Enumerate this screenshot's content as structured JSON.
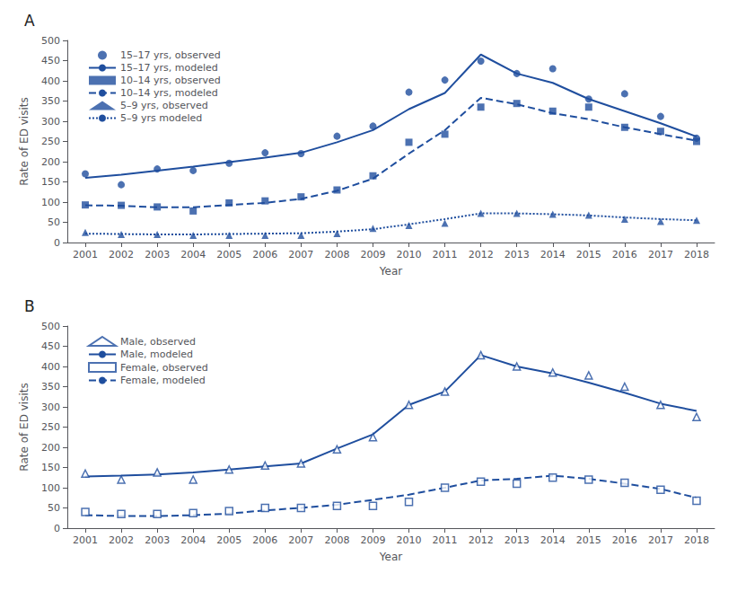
{
  "chart_data": [
    {
      "type": "line",
      "title": "A",
      "xlabel": "Year",
      "ylabel": "Rate of ED visits",
      "x": [
        2001,
        2002,
        2003,
        2004,
        2005,
        2006,
        2007,
        2008,
        2009,
        2010,
        2011,
        2012,
        2013,
        2014,
        2015,
        2016,
        2017,
        2018
      ],
      "xlim": [
        2000.5,
        2018.5
      ],
      "xticks": [
        2001,
        2002,
        2003,
        2004,
        2005,
        2006,
        2007,
        2008,
        2009,
        2010,
        2011,
        2012,
        2013,
        2014,
        2015,
        2016,
        2017,
        2018
      ],
      "ylim": [
        0,
        500
      ],
      "yticks": [
        0,
        50,
        100,
        150,
        200,
        250,
        300,
        350,
        400,
        450,
        500
      ],
      "grid": false,
      "legend": "upper left",
      "color": "#1f4e9e",
      "series": [
        {
          "name": "15–17 yrs, observed",
          "type": "scatter",
          "marker": "circle",
          "values": [
            170,
            143,
            182,
            178,
            196,
            222,
            220,
            263,
            288,
            372,
            402,
            449,
            418,
            430,
            355,
            368,
            312,
            258
          ]
        },
        {
          "name": "15–17 yrs, modeled",
          "type": "line",
          "line_style": "solid",
          "values": [
            160,
            168,
            178,
            188,
            199,
            210,
            222,
            248,
            278,
            330,
            370,
            465,
            418,
            395,
            355,
            325,
            295,
            262
          ]
        },
        {
          "name": "10–14 yrs, observed",
          "type": "scatter",
          "marker": "square",
          "values": [
            93,
            92,
            88,
            78,
            98,
            103,
            113,
            130,
            165,
            248,
            268,
            335,
            344,
            325,
            335,
            285,
            275,
            250
          ]
        },
        {
          "name": "10–14 yrs, modeled",
          "type": "line",
          "line_style": "dashed",
          "values": [
            92,
            91,
            87,
            87,
            93,
            98,
            108,
            128,
            158,
            220,
            278,
            358,
            342,
            320,
            305,
            285,
            268,
            252
          ]
        },
        {
          "name": "5–9 yrs, observed",
          "type": "scatter",
          "marker": "triangle",
          "values": [
            25,
            20,
            20,
            18,
            18,
            18,
            18,
            22,
            35,
            42,
            48,
            72,
            72,
            70,
            68,
            58,
            52,
            55
          ]
        },
        {
          "name": "5–9 yrs modeled",
          "type": "line",
          "line_style": "dotted",
          "values": [
            22,
            21,
            20,
            20,
            21,
            22,
            23,
            27,
            33,
            45,
            58,
            72,
            72,
            70,
            67,
            62,
            58,
            55
          ]
        }
      ]
    },
    {
      "type": "line",
      "title": "B",
      "xlabel": "Year",
      "ylabel": "Rate of ED visits",
      "x": [
        2001,
        2002,
        2003,
        2004,
        2005,
        2006,
        2007,
        2008,
        2009,
        2010,
        2011,
        2012,
        2013,
        2014,
        2015,
        2016,
        2017,
        2018
      ],
      "xlim": [
        2000.5,
        2018.5
      ],
      "xticks": [
        2001,
        2002,
        2003,
        2004,
        2005,
        2006,
        2007,
        2008,
        2009,
        2010,
        2011,
        2012,
        2013,
        2014,
        2015,
        2016,
        2017,
        2018
      ],
      "ylim": [
        0,
        500
      ],
      "yticks": [
        0,
        50,
        100,
        150,
        200,
        250,
        300,
        350,
        400,
        450,
        500
      ],
      "grid": false,
      "legend": "upper left",
      "color": "#1f4e9e",
      "series": [
        {
          "name": "Male, observed",
          "type": "scatter",
          "marker": "open-triangle",
          "values": [
            135,
            120,
            138,
            120,
            145,
            155,
            160,
            195,
            225,
            305,
            338,
            428,
            400,
            385,
            378,
            350,
            305,
            275
          ]
        },
        {
          "name": "Male, modeled",
          "type": "line",
          "line_style": "solid",
          "values": [
            128,
            130,
            133,
            138,
            145,
            153,
            160,
            197,
            232,
            305,
            338,
            428,
            400,
            383,
            360,
            335,
            308,
            290
          ]
        },
        {
          "name": "Female, observed",
          "type": "scatter",
          "marker": "open-square",
          "values": [
            40,
            35,
            35,
            37,
            42,
            50,
            50,
            55,
            55,
            65,
            100,
            115,
            110,
            125,
            120,
            112,
            95,
            68
          ]
        },
        {
          "name": "Female, modeled",
          "type": "line",
          "line_style": "dashed",
          "values": [
            32,
            30,
            30,
            32,
            36,
            44,
            50,
            58,
            70,
            83,
            100,
            118,
            122,
            130,
            122,
            110,
            97,
            75
          ]
        }
      ]
    }
  ]
}
